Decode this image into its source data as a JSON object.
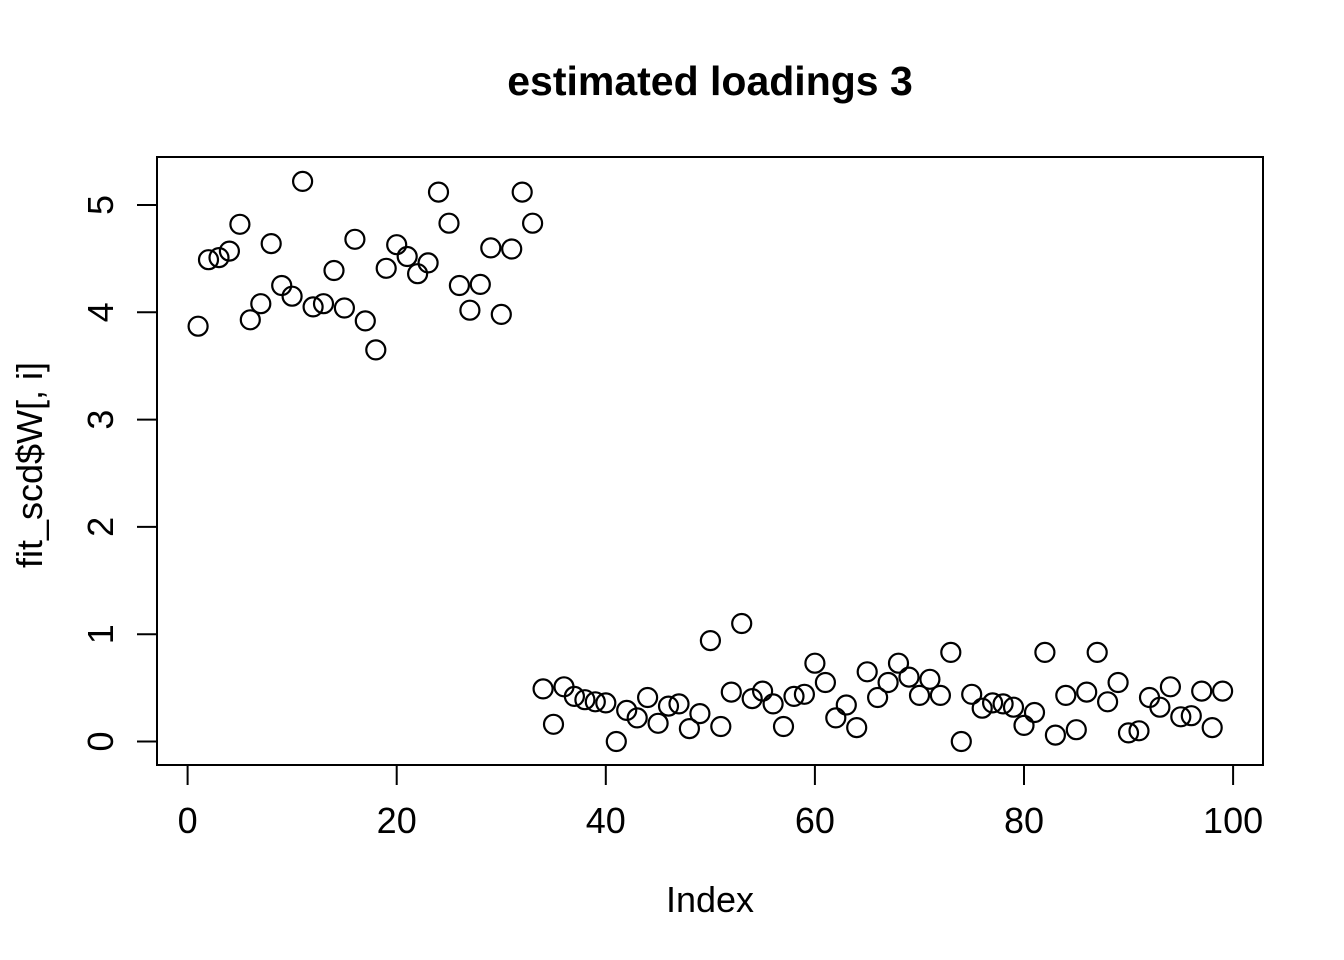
{
  "page": {
    "background_color": "#ffffff",
    "foreground_color": "#000000"
  },
  "chart_data": {
    "type": "scatter",
    "title": "estimated loadings 3",
    "xlabel": "Index",
    "ylabel": "fit_scd$W[, i]",
    "x_ticks": [
      0,
      20,
      40,
      60,
      80,
      100
    ],
    "y_ticks": [
      0,
      1,
      2,
      3,
      4,
      5
    ],
    "x_tick_labels": [
      "0",
      "20",
      "40",
      "60",
      "80",
      "100"
    ],
    "y_tick_labels": [
      "0",
      "1",
      "2",
      "3",
      "4",
      "5"
    ],
    "xlim": [
      -2.9,
      103
    ],
    "ylim": [
      -0.21,
      5.45
    ],
    "grid": false,
    "legend": false,
    "marker": "open-circle",
    "marker_color": "#000000",
    "background": "#ffffff",
    "x": [
      1,
      2,
      3,
      4,
      5,
      6,
      7,
      8,
      9,
      10,
      11,
      12,
      13,
      14,
      15,
      16,
      17,
      18,
      19,
      20,
      21,
      22,
      23,
      24,
      25,
      26,
      27,
      28,
      29,
      30,
      31,
      32,
      33,
      34,
      35,
      36,
      37,
      38,
      39,
      40,
      41,
      42,
      43,
      44,
      45,
      46,
      47,
      48,
      49,
      50,
      51,
      52,
      53,
      54,
      55,
      56,
      57,
      58,
      59,
      60,
      61,
      62,
      63,
      64,
      65,
      66,
      67,
      68,
      69,
      70,
      71,
      72,
      73,
      74,
      75,
      76,
      77,
      78,
      79,
      80,
      81,
      82,
      83,
      84,
      85,
      86,
      87,
      88,
      89,
      90,
      91,
      92,
      93,
      94,
      95,
      96,
      97,
      98,
      99
    ],
    "y": [
      3.87,
      4.49,
      4.51,
      4.57,
      4.82,
      3.93,
      4.08,
      4.64,
      4.25,
      4.15,
      5.22,
      4.05,
      4.08,
      4.39,
      4.04,
      4.68,
      3.92,
      3.65,
      4.41,
      4.63,
      4.52,
      4.36,
      4.46,
      5.12,
      4.83,
      4.25,
      4.02,
      4.26,
      4.6,
      3.98,
      4.59,
      5.12,
      4.83,
      0.49,
      0.16,
      0.51,
      0.42,
      0.39,
      0.37,
      0.36,
      0.0,
      0.29,
      0.22,
      0.41,
      0.17,
      0.33,
      0.35,
      0.12,
      0.26,
      0.94,
      0.14,
      0.46,
      1.1,
      0.4,
      0.47,
      0.35,
      0.14,
      0.42,
      0.44,
      0.73,
      0.55,
      0.22,
      0.34,
      0.13,
      0.65,
      0.41,
      0.55,
      0.73,
      0.6,
      0.43,
      0.58,
      0.43,
      0.83,
      0.0,
      0.44,
      0.31,
      0.36,
      0.35,
      0.32,
      0.15,
      0.27,
      0.83,
      0.06,
      0.43,
      0.11,
      0.46,
      0.83,
      0.37,
      0.55,
      0.08,
      0.1,
      0.41,
      0.32,
      0.51,
      0.23,
      0.24,
      0.47,
      0.13,
      0.47
    ]
  }
}
